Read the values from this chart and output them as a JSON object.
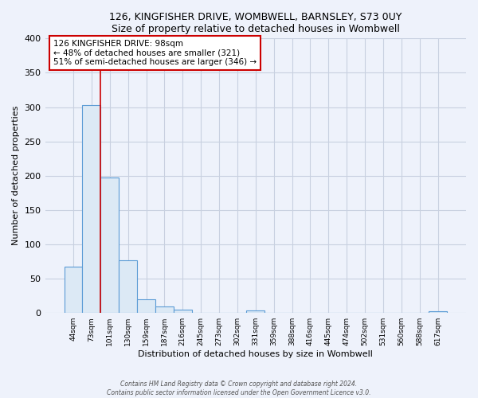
{
  "title_line1": "126, KINGFISHER DRIVE, WOMBWELL, BARNSLEY, S73 0UY",
  "title_line2": "Size of property relative to detached houses in Wombwell",
  "xlabel": "Distribution of detached houses by size in Wombwell",
  "ylabel": "Number of detached properties",
  "bar_labels": [
    "44sqm",
    "73sqm",
    "101sqm",
    "130sqm",
    "159sqm",
    "187sqm",
    "216sqm",
    "245sqm",
    "273sqm",
    "302sqm",
    "331sqm",
    "359sqm",
    "388sqm",
    "416sqm",
    "445sqm",
    "474sqm",
    "502sqm",
    "531sqm",
    "560sqm",
    "588sqm",
    "617sqm"
  ],
  "bar_values": [
    68,
    303,
    197,
    77,
    20,
    10,
    5,
    0,
    0,
    0,
    4,
    0,
    0,
    0,
    0,
    0,
    0,
    0,
    0,
    0,
    2
  ],
  "bar_fill": "#dce9f5",
  "bar_edge": "#5b9bd5",
  "vline_x_index": 2,
  "vline_color": "#cc0000",
  "annotation_title": "126 KINGFISHER DRIVE: 98sqm",
  "annotation_line1": "← 48% of detached houses are smaller (321)",
  "annotation_line2": "51% of semi-detached houses are larger (346) →",
  "ylim": [
    0,
    400
  ],
  "yticks": [
    0,
    50,
    100,
    150,
    200,
    250,
    300,
    350,
    400
  ],
  "footer_line1": "Contains HM Land Registry data © Crown copyright and database right 2024.",
  "footer_line2": "Contains public sector information licensed under the Open Government Licence v3.0.",
  "background_color": "#eef2fb",
  "plot_bg_color": "#eef2fb",
  "grid_color": "#c8d0e0"
}
